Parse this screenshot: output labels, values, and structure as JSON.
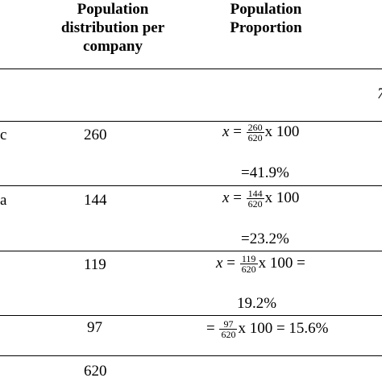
{
  "header": {
    "col_distribution": [
      "Population",
      "distribution per",
      "company"
    ],
    "col_proportion": [
      "Population",
      "Proportion"
    ]
  },
  "partial_cell": "7",
  "rows": [
    {
      "label": "c",
      "count": "260",
      "num": "260",
      "den": "620",
      "tail": "x 100",
      "result": "=41.9%"
    },
    {
      "label": "a",
      "count": "144",
      "num": "144",
      "den": "620",
      "tail": "x 100",
      "result": "=23.2%"
    },
    {
      "label": "",
      "count": "119",
      "num": "119",
      "den": "620",
      "tail": "x 100 =",
      "result": "19.2%"
    },
    {
      "label": "",
      "count": "97",
      "num": "97",
      "den": "620",
      "tail": "x 100 = 15.6%",
      "result": ""
    }
  ],
  "total": "620",
  "math": {
    "var": "x",
    "eq": "="
  }
}
